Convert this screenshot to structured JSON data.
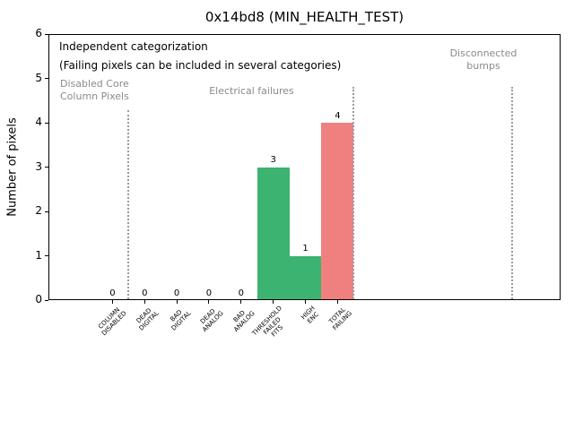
{
  "notes": {
    "heading": "Independent categorization",
    "subheading": "(Failing pixels can be included in several categories)"
  },
  "sections": {
    "disabled_core": "Disabled Core\nColumn Pixels",
    "electrical": "Electrical failures",
    "disconnected": "Disconnected\nbumps"
  },
  "chart_data": {
    "type": "bar",
    "title": "0x14bd8 (MIN_HEALTH_TEST)",
    "xlabel": "",
    "ylabel": "Number of pixels",
    "ylim": [
      0,
      6
    ],
    "yticks": [
      0,
      1,
      2,
      3,
      4,
      5,
      6
    ],
    "grid": false,
    "legend": null,
    "categories": [
      "COLUMN\nDISABLED",
      "DEAD\nDIGITAL",
      "BAD\nDIGITAL",
      "DEAD\nANALOG",
      "BAD\nANALOG",
      "THRESHOLD\nFAILED\nFITS",
      "HIGH\nENC",
      "TOTAL\nFAILING"
    ],
    "values": [
      0,
      0,
      0,
      0,
      0,
      3,
      1,
      4
    ],
    "value_labels": [
      "0",
      "0",
      "0",
      "0",
      "0",
      "3",
      "1",
      "4"
    ],
    "bar_colors": [
      "#3cb371",
      "#3cb371",
      "#3cb371",
      "#3cb371",
      "#3cb371",
      "#3cb371",
      "#3cb371",
      "#f08080"
    ],
    "colors": {
      "pass_green": "#3cb371",
      "fail_red": "#f08080",
      "annotation_gray": "#8a8a8a",
      "separator_gray": "#9b9b9b"
    },
    "section_labels": [
      "Disabled Core\nColumn Pixels",
      "Electrical failures",
      "Disconnected\nbumps"
    ]
  }
}
